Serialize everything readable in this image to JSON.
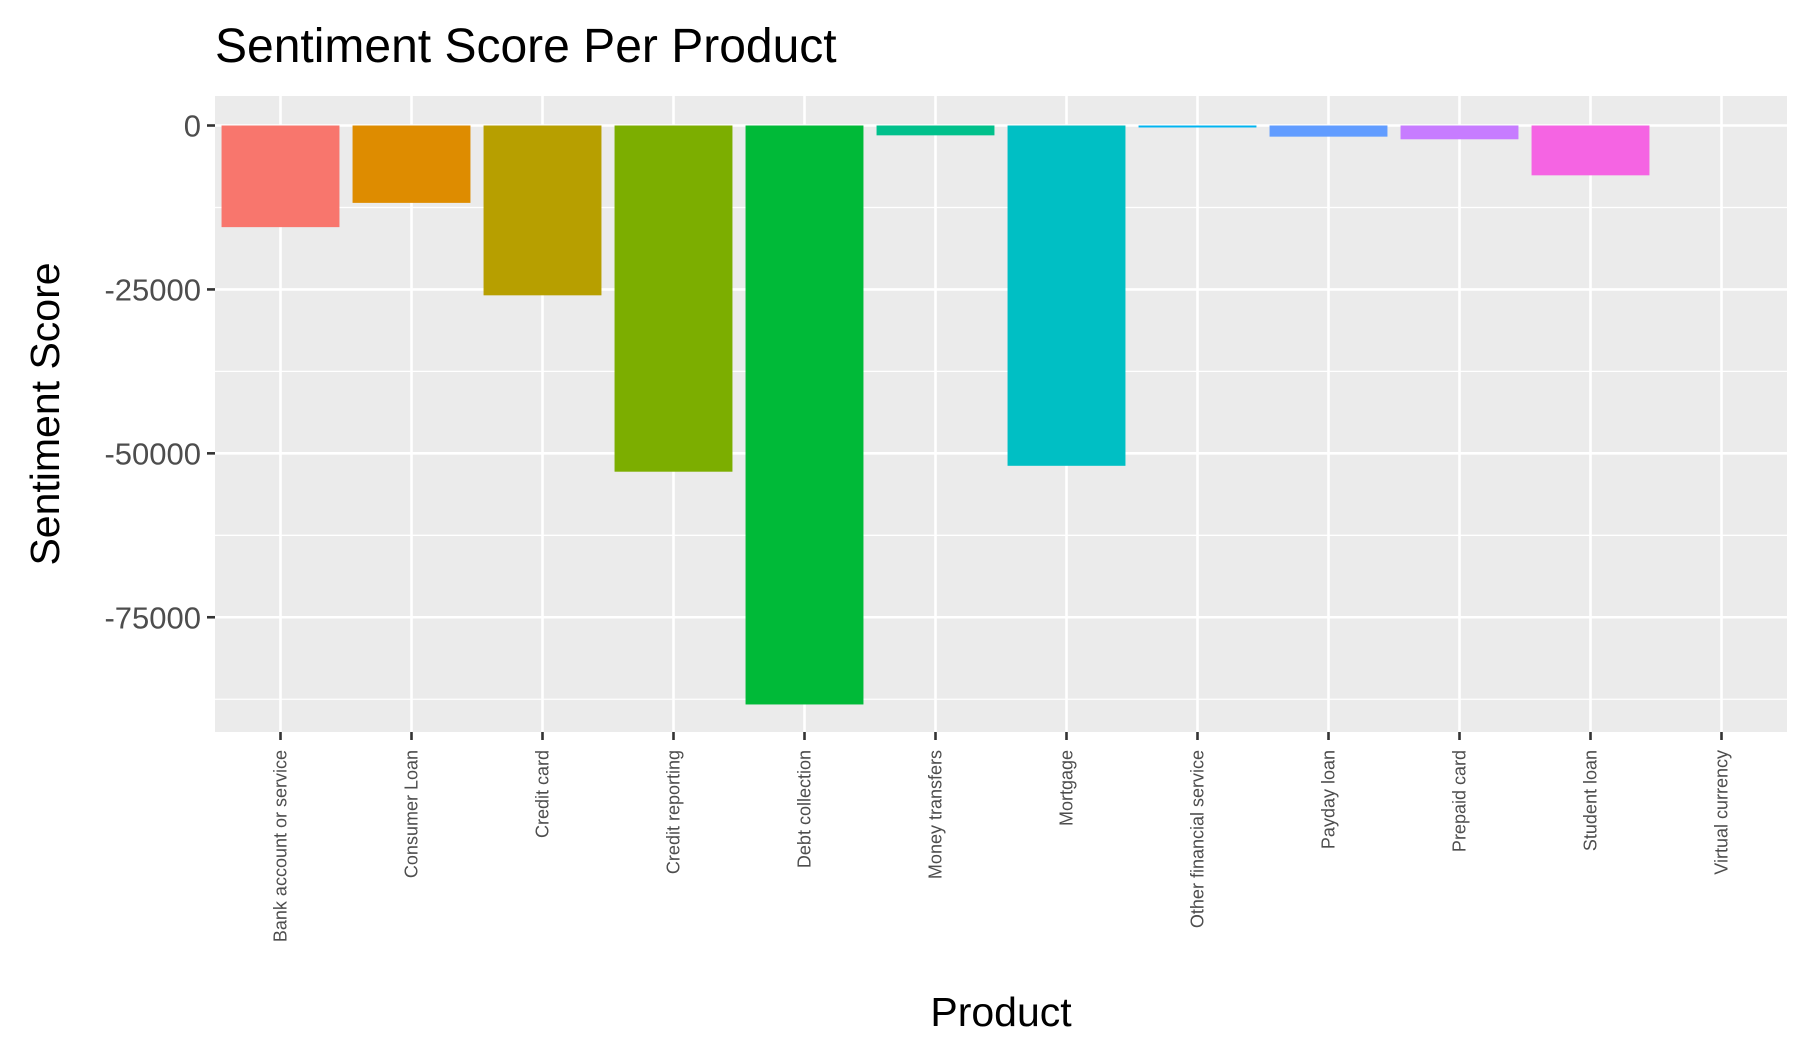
{
  "chart_data": {
    "type": "bar",
    "title": "Sentiment Score Per Product",
    "xlabel": "Product",
    "ylabel": "Sentiment Score",
    "categories": [
      "Bank account or service",
      "Consumer Loan",
      "Credit card",
      "Credit reporting",
      "Debt collection",
      "Money transfers",
      "Mortgage",
      "Other financial service",
      "Payday loan",
      "Prepaid card",
      "Student loan",
      "Virtual currency"
    ],
    "values": [
      -15500,
      -11800,
      -25900,
      -52800,
      -88300,
      -1500,
      -51900,
      -300,
      -1700,
      -2100,
      -7600,
      0
    ],
    "colors": [
      "#F8766D",
      "#DE8C00",
      "#B79F00",
      "#7CAE00",
      "#00BA38",
      "#00C08B",
      "#00BFC4",
      "#00B4F0",
      "#619CFF",
      "#C77CFF",
      "#F564E3",
      "#FF64B0"
    ],
    "yticks": [
      0,
      -25000,
      -50000,
      -75000
    ],
    "ylim": [
      -92500,
      4500
    ],
    "grid": true,
    "legend": "none",
    "panel_background": "#EBEBEB",
    "grid_color": "#FFFFFF"
  }
}
